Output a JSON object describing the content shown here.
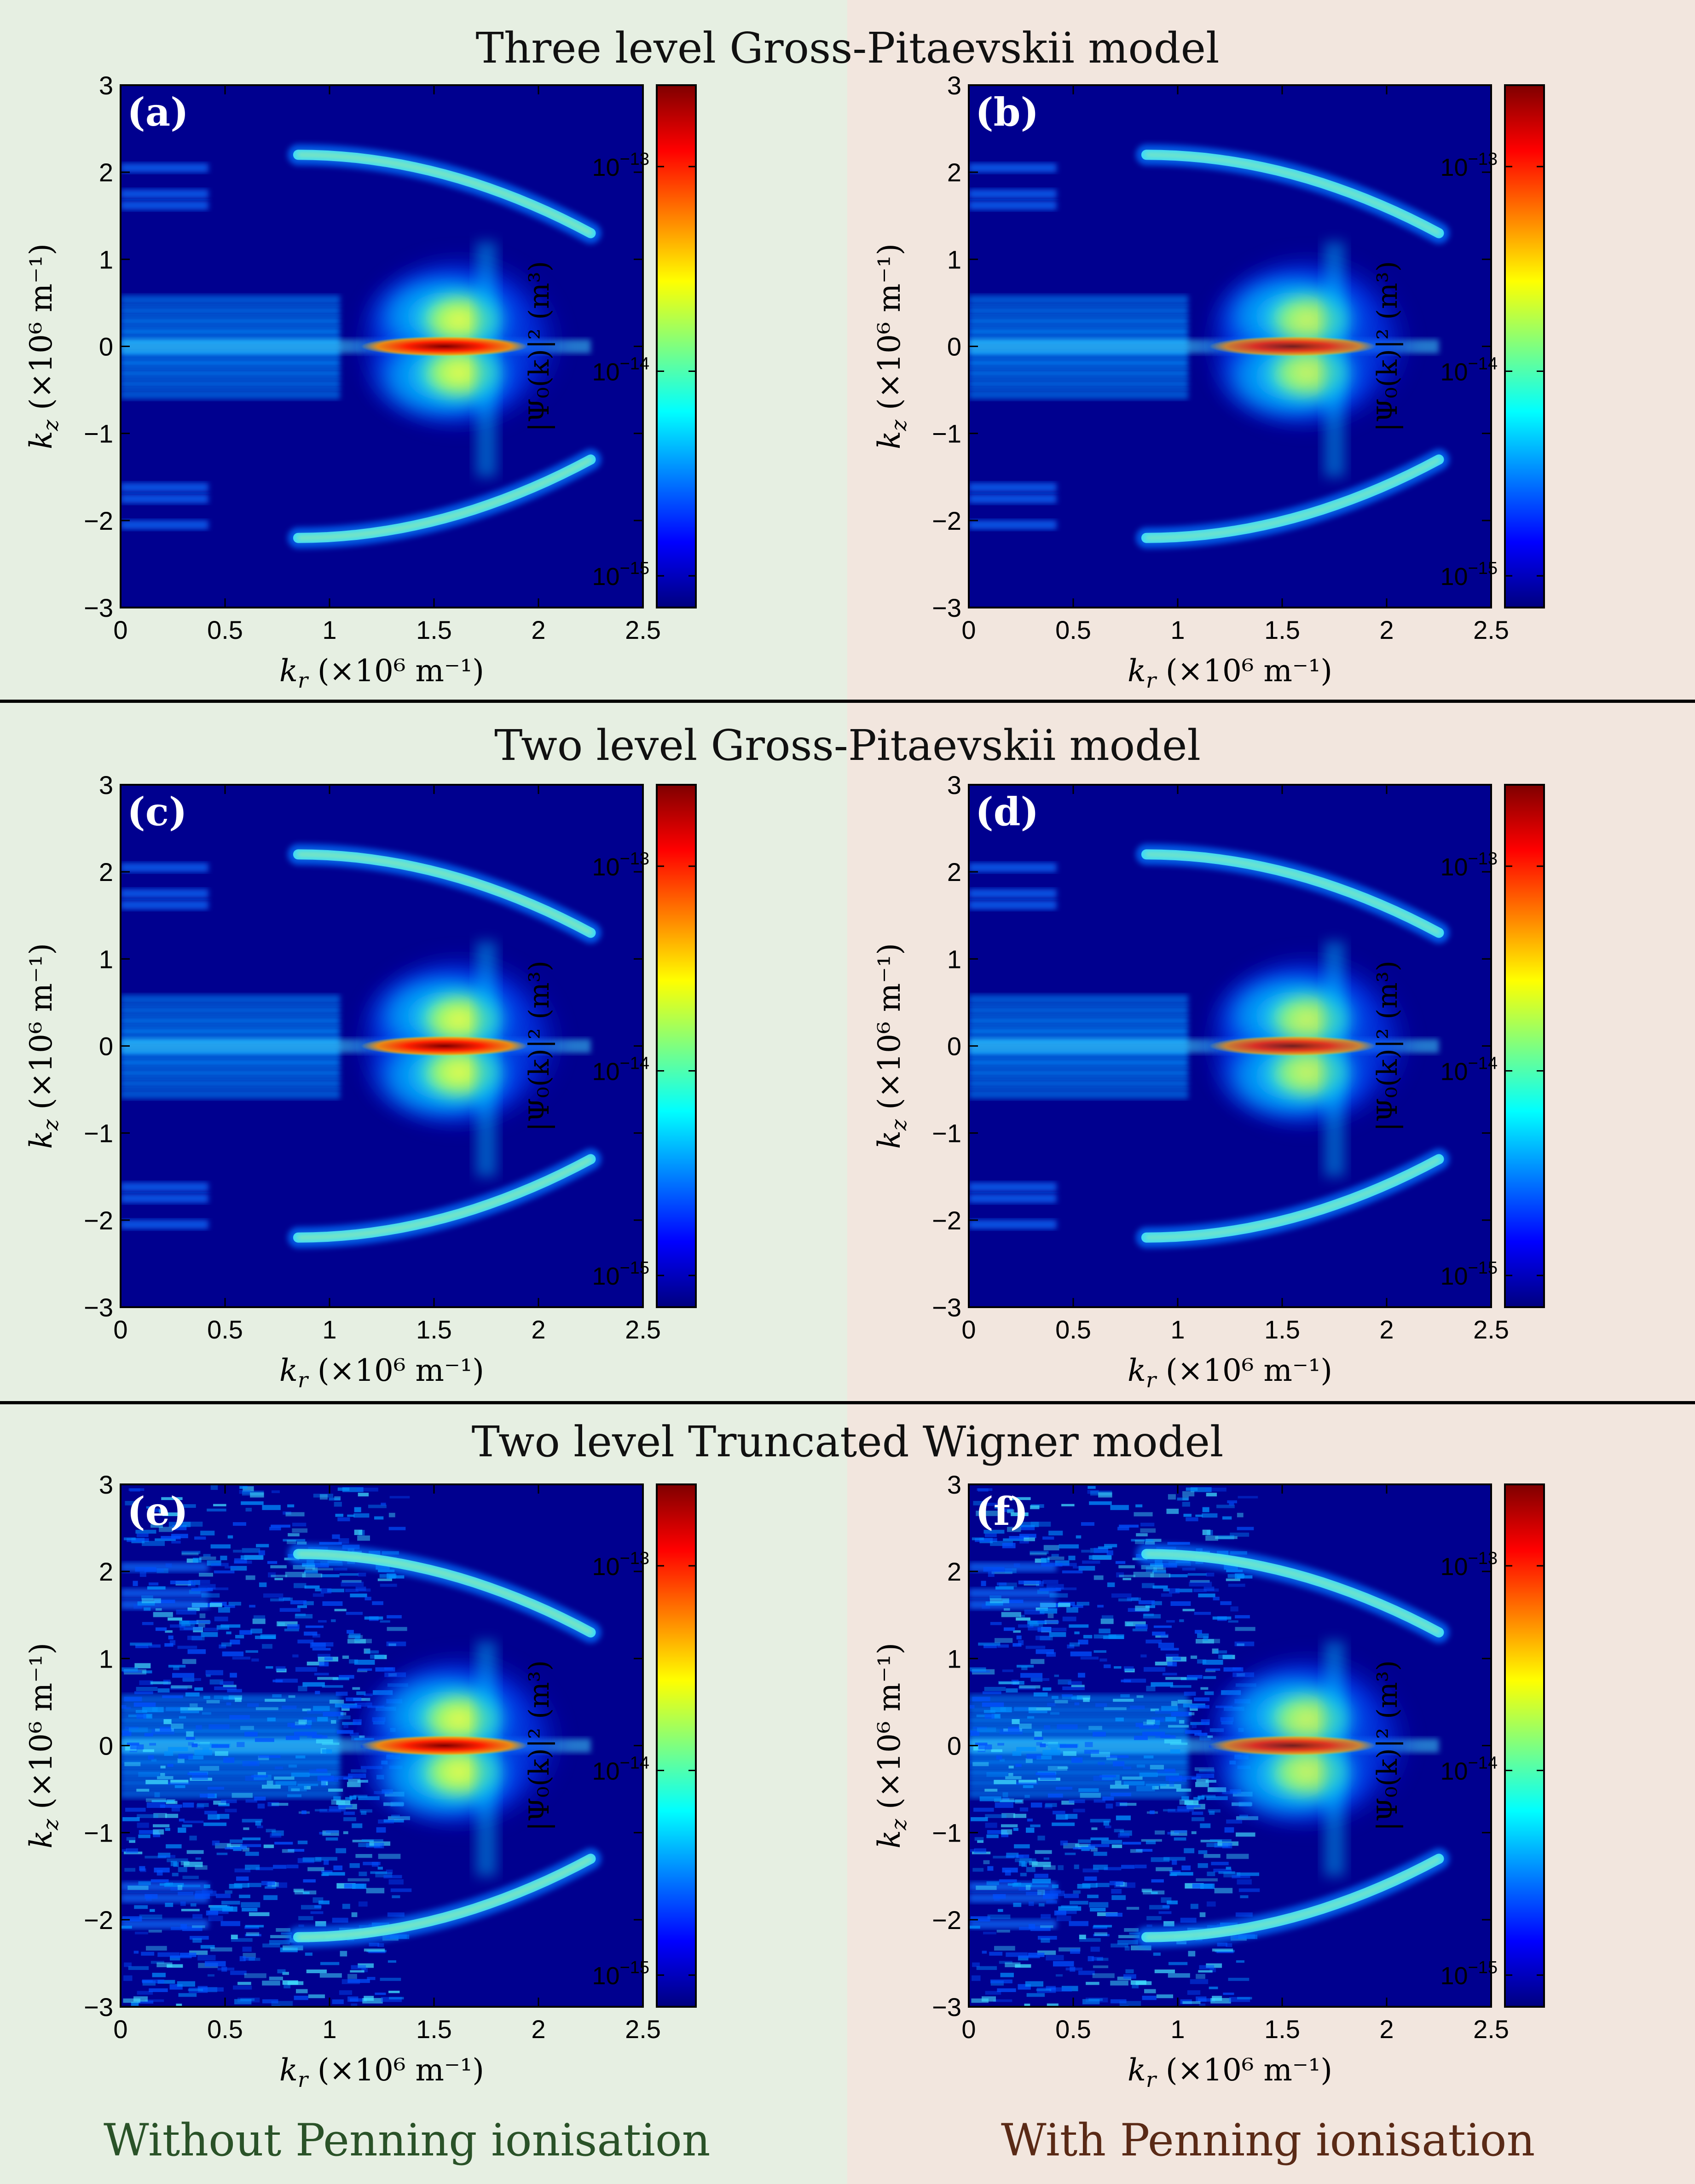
{
  "rows": [
    {
      "title": "Three level Gross-Pitaevskii model"
    },
    {
      "title": "Two level Gross-Pitaevskii model"
    },
    {
      "title": "Two level Truncated Wigner model"
    }
  ],
  "footer": {
    "left": "Without Penning ionisation",
    "right": "With Penning ionisation",
    "left_color": "#2a5228",
    "right_color": "#5a2a16"
  },
  "chart_data": [
    {
      "type": "heatmap",
      "panel_label": "(a)",
      "row": 0,
      "col": 0,
      "noisy": false,
      "peak": 1.0
    },
    {
      "type": "heatmap",
      "panel_label": "(b)",
      "row": 0,
      "col": 1,
      "noisy": false,
      "peak": 0.85
    },
    {
      "type": "heatmap",
      "panel_label": "(c)",
      "row": 1,
      "col": 0,
      "noisy": false,
      "peak": 1.0
    },
    {
      "type": "heatmap",
      "panel_label": "(d)",
      "row": 1,
      "col": 1,
      "noisy": false,
      "peak": 0.85
    },
    {
      "type": "heatmap",
      "panel_label": "(e)",
      "row": 2,
      "col": 0,
      "noisy": true,
      "peak": 1.0
    },
    {
      "type": "heatmap",
      "panel_label": "(f)",
      "row": 2,
      "col": 1,
      "noisy": true,
      "peak": 0.85
    }
  ],
  "axes": {
    "x_ticks": [
      "0",
      "0.5",
      "1",
      "1.5",
      "2",
      "2.5"
    ],
    "x_range": [
      0,
      2.5
    ],
    "y_ticks": [
      "3",
      "2",
      "1",
      "0",
      "−1",
      "−2",
      "−3"
    ],
    "y_range": [
      -3,
      3
    ],
    "xlabel_var": "k",
    "xlabel_sub": "r",
    "xlabel_unit": "(×10⁶ m⁻¹)",
    "ylabel_var": "k",
    "ylabel_sub": "z",
    "ylabel_unit": "(×10⁶ m⁻¹)"
  },
  "colorbar": {
    "scale": "log",
    "range": [
      7e-16,
      2.5e-13
    ],
    "ticks": [
      {
        "label_base": "10",
        "label_exp": "−13"
      },
      {
        "label_base": "10",
        "label_exp": "−14"
      },
      {
        "label_base": "10",
        "label_exp": "−15"
      }
    ],
    "label": "|Ψ₀(k)|² (m³)",
    "colormap": "jet",
    "stops": [
      "#00007f",
      "#0000ff",
      "#007fff",
      "#00ffff",
      "#7fff7f",
      "#ffff00",
      "#ff7f00",
      "#ff0000",
      "#7f0000"
    ]
  }
}
